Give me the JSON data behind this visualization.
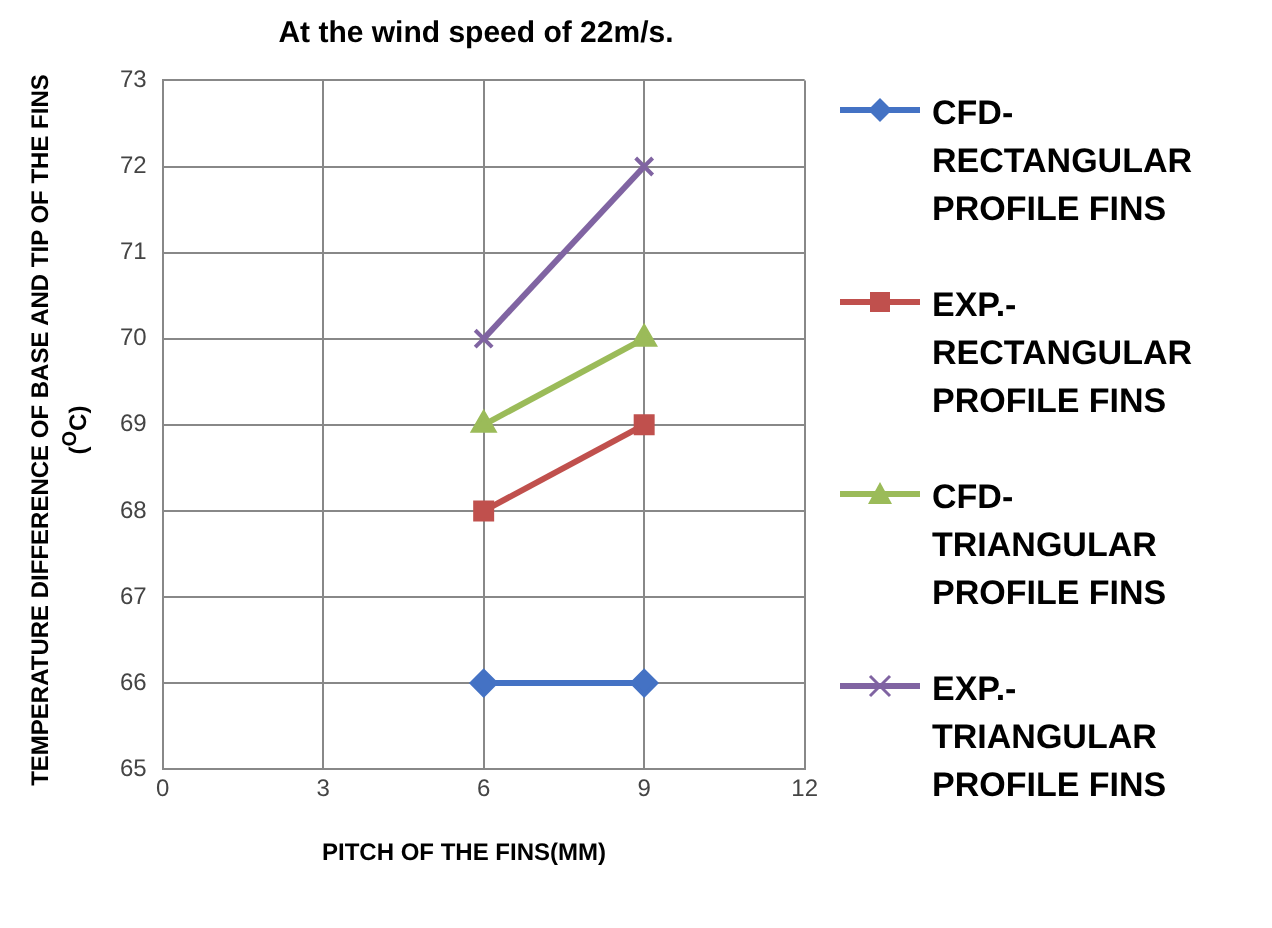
{
  "chart_data": {
    "type": "line",
    "title": "At the wind speed of 22m/s.",
    "xlabel": "PITCH OF THE FINS(MM)",
    "ylabel": "TEMPERATURE DIFFERENCE OF BASE AND TIP OF THE FINS ($^{O}$C)",
    "x": [
      6,
      9
    ],
    "series": [
      {
        "name": "CFD-RECTANGULAR PROFILE FINS",
        "color": "#4472c4",
        "marker": "diamond",
        "values": [
          66,
          66
        ]
      },
      {
        "name": "EXP.-RECTANGULAR PROFILE FINS",
        "color": "#c0504d",
        "marker": "square",
        "values": [
          68,
          69
        ]
      },
      {
        "name": "CFD-TRIANGULAR PROFILE FINS",
        "color": "#9bbb59",
        "marker": "triangle",
        "values": [
          69,
          70
        ]
      },
      {
        "name": "EXP.-TRIANGULAR PROFILE FINS",
        "color": "#8064a2",
        "marker": "cross",
        "values": [
          70,
          72
        ]
      }
    ],
    "xlim": [
      0,
      12
    ],
    "xticks": [
      0,
      3,
      6,
      9,
      12
    ],
    "ylim": [
      65,
      73
    ],
    "yticks": [
      65,
      66,
      67,
      68,
      69,
      70,
      71,
      72,
      73
    ],
    "grid": true,
    "legend": "right"
  }
}
